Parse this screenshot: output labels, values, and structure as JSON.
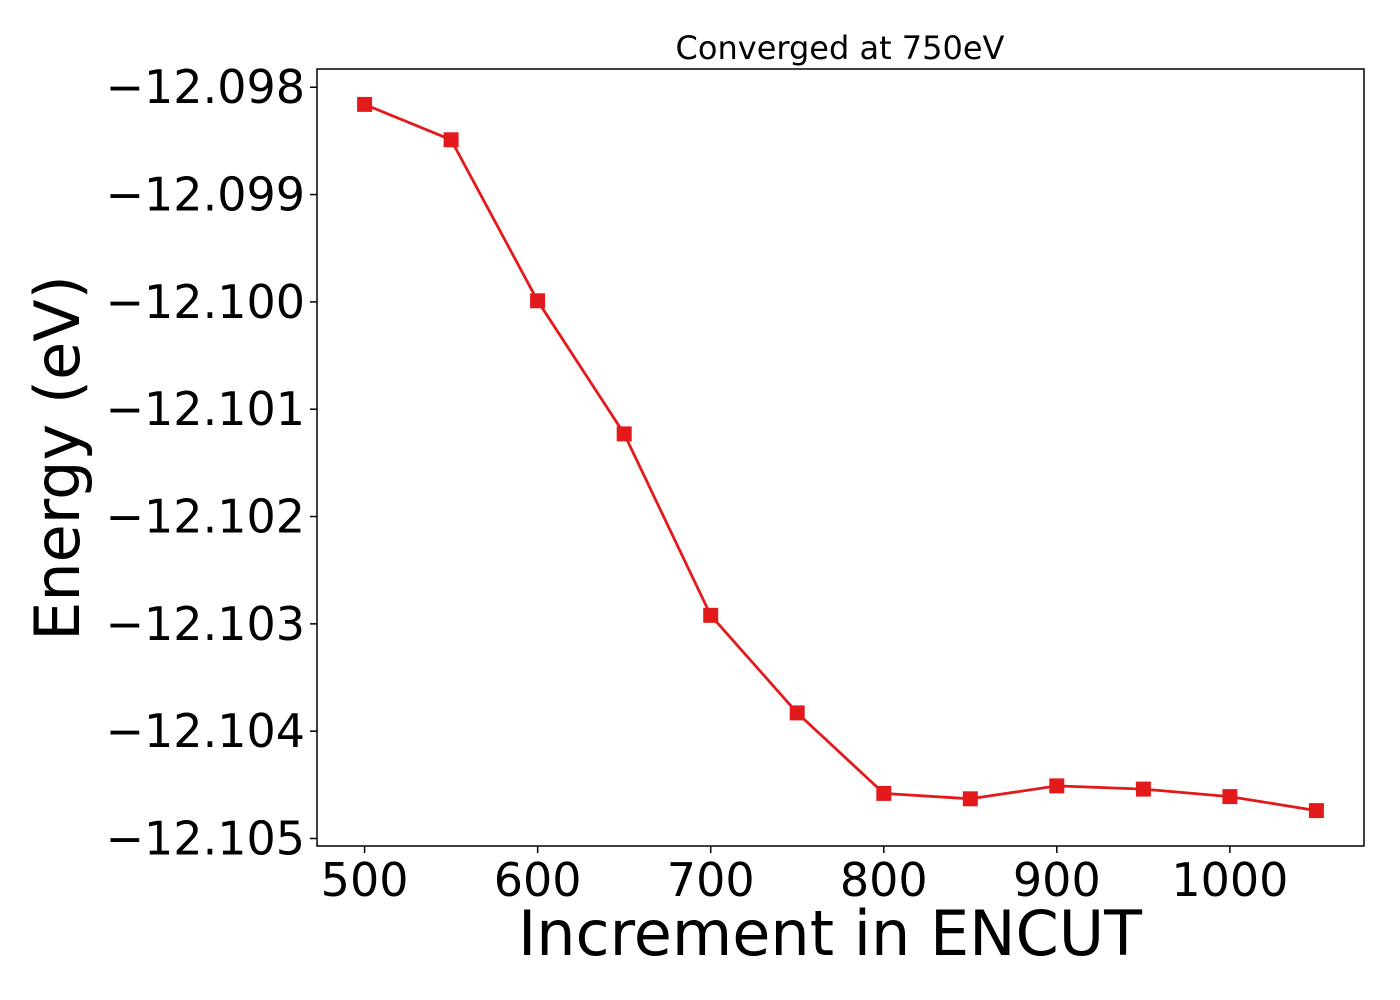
{
  "chart_data": {
    "type": "line",
    "title": "Converged at 750eV",
    "xlabel": "Increment in ENCUT",
    "ylabel": "Energy (eV)",
    "x": [
      500,
      550,
      600,
      650,
      700,
      750,
      800,
      850,
      900,
      950,
      1000,
      1050
    ],
    "series": [
      {
        "values": [
          -12.09816,
          -12.09849,
          -12.09999,
          -12.10123,
          -12.10292,
          -12.10383,
          -12.10458,
          -12.10463,
          -12.10451,
          -12.10454,
          -12.10461,
          -12.10474
        ],
        "color": "#e31a1c",
        "marker": "square"
      }
    ],
    "xticks": [
      500,
      600,
      700,
      800,
      900,
      1000
    ],
    "xtick_labels": [
      "500",
      "600",
      "700",
      "800",
      "900",
      "1000"
    ],
    "yticks": [
      -12.098,
      -12.099,
      -12.1,
      -12.101,
      -12.102,
      -12.103,
      -12.104,
      -12.105
    ],
    "ytick_labels": [
      "−12.098",
      "−12.099",
      "−12.100",
      "−12.101",
      "−12.102",
      "−12.103",
      "−12.104",
      "−12.105"
    ],
    "xlim": [
      472.5,
      1077.5
    ],
    "ylim": [
      -12.10507,
      -12.09783
    ],
    "grid": false,
    "legend": false
  }
}
